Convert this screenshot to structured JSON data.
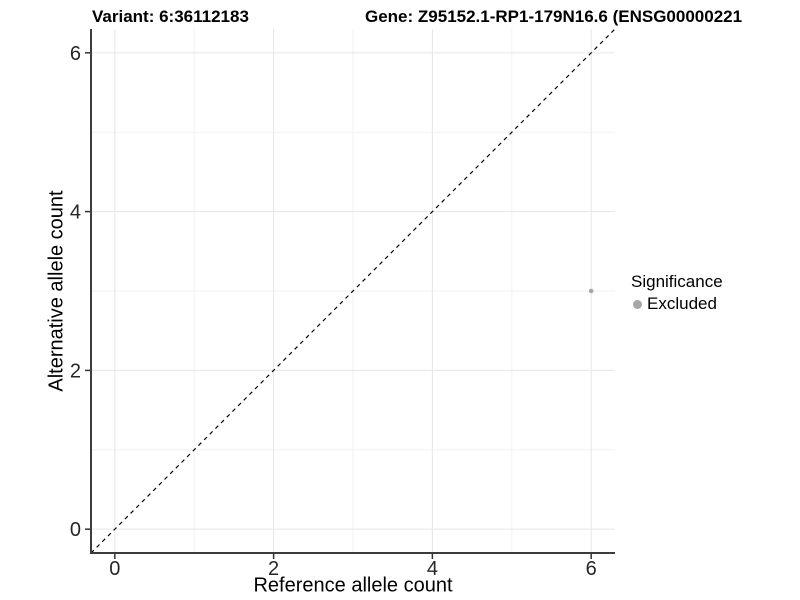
{
  "titles": {
    "variant": "Variant: 6:36112183",
    "gene": "Gene: Z95152.1-RP1-179N16.6 (ENSG00000221"
  },
  "chart_data": {
    "type": "scatter",
    "xlabel": "Reference allele count",
    "ylabel": "Alternative allele count",
    "xlim": [
      -0.3,
      6.3
    ],
    "ylim": [
      -0.3,
      6.3
    ],
    "x_major_ticks": [
      0,
      2,
      4,
      6
    ],
    "y_major_ticks": [
      0,
      2,
      4,
      6
    ],
    "x_minor_ticks": [
      1,
      3,
      5
    ],
    "y_minor_ticks": [
      1,
      3,
      5
    ],
    "grid": true,
    "legend_position": "right",
    "points": [
      {
        "x": 6,
        "y": 3,
        "significance": "Excluded"
      }
    ],
    "abline": {
      "slope": 1,
      "intercept": 0,
      "style": "dashed"
    }
  },
  "legend": {
    "title": "Significance",
    "items": [
      {
        "label": "Excluded",
        "color": "#a6a6a6"
      }
    ]
  },
  "colors": {
    "point": "#aaaaaa",
    "grid_major": "#e6e6e6",
    "grid_minor": "#f2f2f2",
    "axis_line": "#3c3c3c",
    "tick_mark": "#333333",
    "abline": "#000000"
  }
}
